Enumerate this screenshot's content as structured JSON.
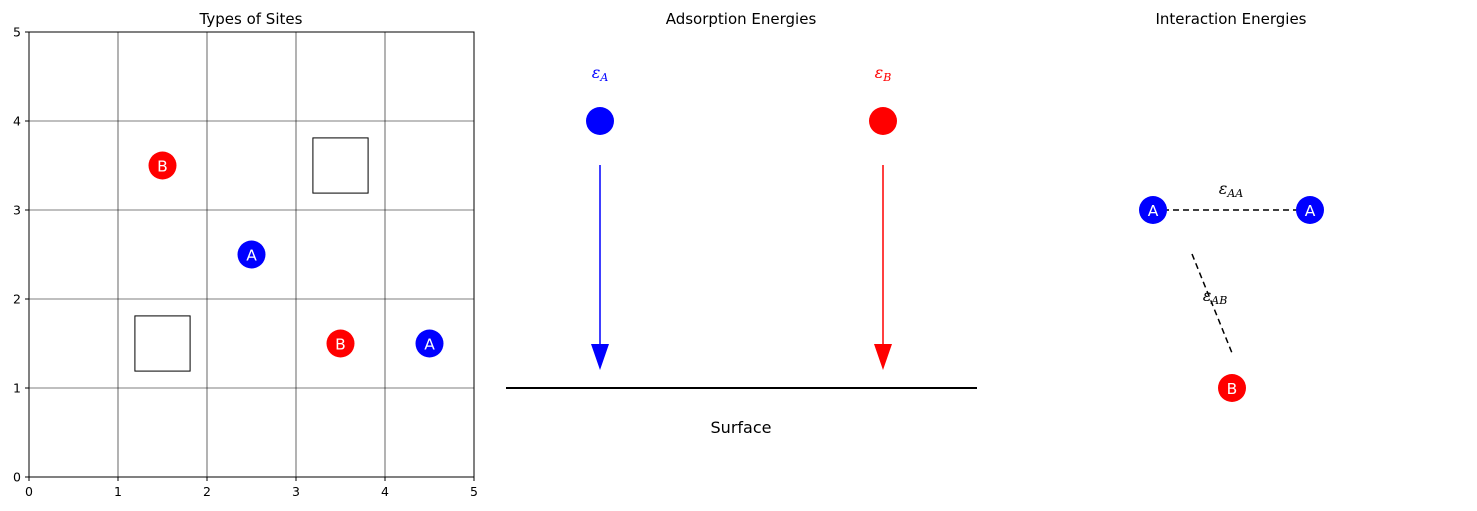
{
  "panels": {
    "sites": {
      "title": "Types of Sites",
      "xticks": [
        "0",
        "1",
        "2",
        "3",
        "4",
        "5"
      ],
      "yticks": [
        "0",
        "1",
        "2",
        "3",
        "4",
        "5"
      ],
      "atoms": [
        {
          "label": "B",
          "x": 1.5,
          "y": 3.5,
          "color": "#ff0000"
        },
        {
          "label": "A",
          "x": 2.5,
          "y": 2.5,
          "color": "#0000ff"
        },
        {
          "label": "B",
          "x": 3.5,
          "y": 1.5,
          "color": "#ff0000"
        },
        {
          "label": "A",
          "x": 4.5,
          "y": 1.5,
          "color": "#0000ff"
        }
      ],
      "empty_sites": [
        {
          "x": 3.5,
          "y": 3.5
        },
        {
          "x": 1.5,
          "y": 1.5
        }
      ]
    },
    "adsorption": {
      "title": "Adsorption Energies",
      "eps_a": {
        "symbol": "ε",
        "sub": "A",
        "color": "#0000ff"
      },
      "eps_b": {
        "symbol": "ε",
        "sub": "B",
        "color": "#ff0000"
      },
      "surface_label": "Surface"
    },
    "interaction": {
      "title": "Interaction Energies",
      "atom_a1": "A",
      "atom_a2": "A",
      "atom_b": "B",
      "eps_aa": {
        "symbol": "ε",
        "sub": "AA"
      },
      "eps_ab": {
        "symbol": "ε",
        "sub": "AB"
      }
    }
  },
  "colors": {
    "A": "#0000ff",
    "B": "#ff0000"
  }
}
